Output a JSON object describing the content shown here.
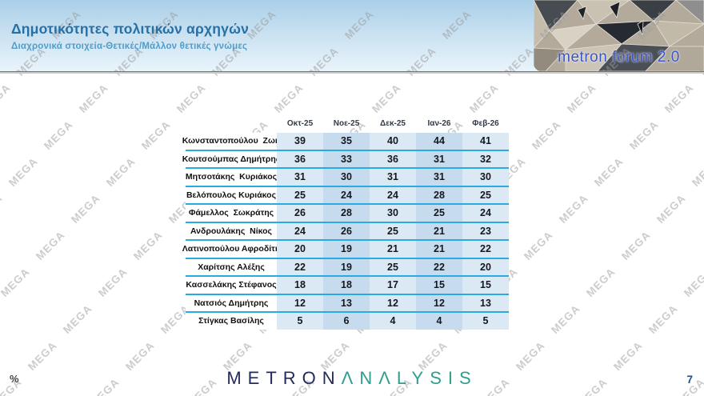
{
  "header": {
    "title": "Δημοτικότητες πολιτικών αρχηγών",
    "subtitle": "Διαχρονικά στοιχεία-Θετικές/Μάλλον θετικές γνώμες",
    "logo_text": "metron forum 2.0"
  },
  "watermark": {
    "text": "MEGA"
  },
  "chart_data": {
    "type": "table",
    "title": "Δημοτικότητες πολιτικών αρχηγών",
    "subtitle": "Διαχρονικά στοιχεία-Θετικές/Μάλλον θετικές γνώμες",
    "unit": "%",
    "columns": [
      "Οκτ-25",
      "Νοε-25",
      "Δεκ-25",
      "Ιαν-26",
      "Φεβ-26"
    ],
    "rows": [
      {
        "name": "Κωνσταντοπούλου  Ζωή",
        "values": [
          39,
          35,
          40,
          44,
          41
        ]
      },
      {
        "name": "Κουτσούμπας Δημήτρης",
        "values": [
          36,
          33,
          36,
          31,
          32
        ]
      },
      {
        "name": "Μητσοτάκης  Κυριάκος",
        "values": [
          31,
          30,
          31,
          31,
          30
        ]
      },
      {
        "name": "Βελόπουλος Κυριάκος",
        "values": [
          25,
          24,
          24,
          28,
          25
        ]
      },
      {
        "name": "Φάμελλος  Σωκράτης",
        "values": [
          26,
          28,
          30,
          25,
          24
        ]
      },
      {
        "name": "Ανδρουλάκης  Νίκος",
        "values": [
          24,
          26,
          25,
          21,
          23
        ]
      },
      {
        "name": "Λατινοπούλου Αφροδίτη",
        "values": [
          20,
          19,
          21,
          21,
          22
        ]
      },
      {
        "name": "Χαρίτσης Αλέξης",
        "values": [
          22,
          19,
          25,
          22,
          20
        ]
      },
      {
        "name": "Κασσελάκης Στέφανος",
        "values": [
          18,
          18,
          17,
          15,
          15
        ]
      },
      {
        "name": "Νατσιός Δημήτρης",
        "values": [
          12,
          13,
          12,
          12,
          13
        ]
      },
      {
        "name": "Στίγκας Βασίλης",
        "values": [
          5,
          6,
          4,
          4,
          5
        ]
      }
    ]
  },
  "footer": {
    "percent_label": "%",
    "logo_part1": "METRON",
    "logo_part2": "ΛNΛLYSIS",
    "page_number": "7"
  },
  "colors": {
    "accent_cyan": "#29abe2",
    "cell_light": "#dbe9f5",
    "cell_dark": "#c6dcee",
    "title_blue": "#2471a7",
    "subtitle_blue": "#4f9dca",
    "brand_navy": "#232a5e",
    "brand_teal": "#2f9e8e",
    "watermark_gray": "#9a9a9a",
    "page_blue": "#1f4e79",
    "logo_text_blue": "#3a54c8"
  }
}
